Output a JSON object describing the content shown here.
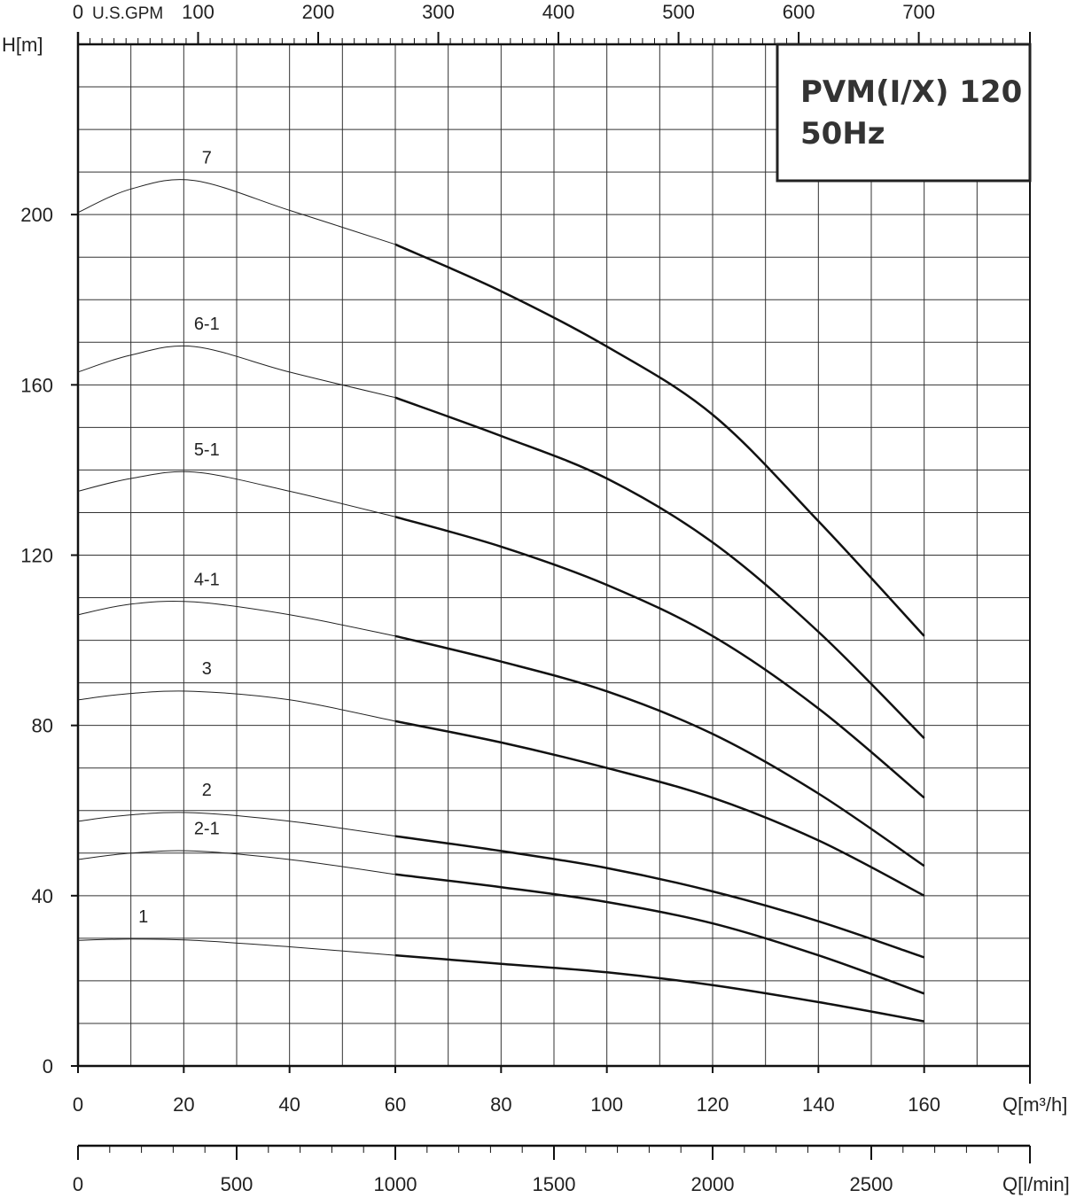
{
  "chart_data": {
    "type": "line",
    "title": "PVM(I/X) 120",
    "subtitle": "50Hz",
    "ylabel": "H[m]",
    "xlabel": "Q[m³/h]",
    "xlabel_secondary_bottom": "Q[l/min]",
    "xlabel_secondary_top": "U.S.GPM",
    "xlim": [
      0,
      180
    ],
    "ylim": [
      0,
      240
    ],
    "x_ticks": [
      "0",
      "20",
      "40",
      "60",
      "80",
      "100",
      "120",
      "140",
      "160"
    ],
    "y_ticks": [
      "0",
      "40",
      "80",
      "120",
      "160",
      "200"
    ],
    "top_ticks": [
      "0",
      "100",
      "200",
      "300",
      "400",
      "500",
      "600",
      "700"
    ],
    "bottom_ticks": [
      "0",
      "500",
      "1000",
      "1500",
      "2000",
      "2500"
    ],
    "grid": true,
    "series": [
      {
        "name": "7",
        "x": [
          0,
          10,
          22,
          40,
          60,
          80,
          100,
          120,
          140,
          160
        ],
        "values": [
          200.5,
          206,
          208,
          201,
          193,
          182,
          169,
          153,
          128,
          101
        ]
      },
      {
        "name": "6-1",
        "x": [
          0,
          10,
          22,
          40,
          60,
          80,
          100,
          120,
          140,
          160
        ],
        "values": [
          163,
          167,
          169,
          163,
          157,
          148,
          138,
          123,
          102,
          77
        ]
      },
      {
        "name": "5-1",
        "x": [
          0,
          10,
          22,
          40,
          60,
          80,
          100,
          120,
          140,
          160
        ],
        "values": [
          135,
          138,
          139.5,
          135,
          129,
          122,
          113,
          101,
          84,
          63
        ]
      },
      {
        "name": "4-1",
        "x": [
          0,
          10,
          22,
          40,
          60,
          80,
          100,
          120,
          140,
          160
        ],
        "values": [
          106,
          108.5,
          109,
          106,
          101,
          95,
          88,
          78,
          64,
          47
        ]
      },
      {
        "name": "3",
        "x": [
          0,
          10,
          22,
          40,
          60,
          80,
          100,
          120,
          140,
          160
        ],
        "values": [
          86,
          87.5,
          88,
          86,
          81,
          76,
          70,
          63,
          53,
          40
        ]
      },
      {
        "name": "2",
        "x": [
          0,
          10,
          22,
          40,
          60,
          80,
          100,
          120,
          140,
          160
        ],
        "values": [
          57.5,
          59,
          59.5,
          57.5,
          54,
          50.5,
          46.5,
          41,
          34,
          25.5
        ]
      },
      {
        "name": "2-1",
        "x": [
          0,
          10,
          22,
          40,
          60,
          80,
          100,
          120,
          140,
          160
        ],
        "values": [
          48.5,
          50,
          50.5,
          48.5,
          45,
          42,
          38.5,
          33.5,
          26,
          17
        ]
      },
      {
        "name": "1",
        "x": [
          0,
          10,
          22,
          40,
          60,
          80,
          100,
          120,
          140,
          160
        ],
        "values": [
          29.5,
          29.8,
          29.5,
          28,
          26,
          24,
          22,
          19,
          15,
          10.5
        ]
      }
    ]
  }
}
